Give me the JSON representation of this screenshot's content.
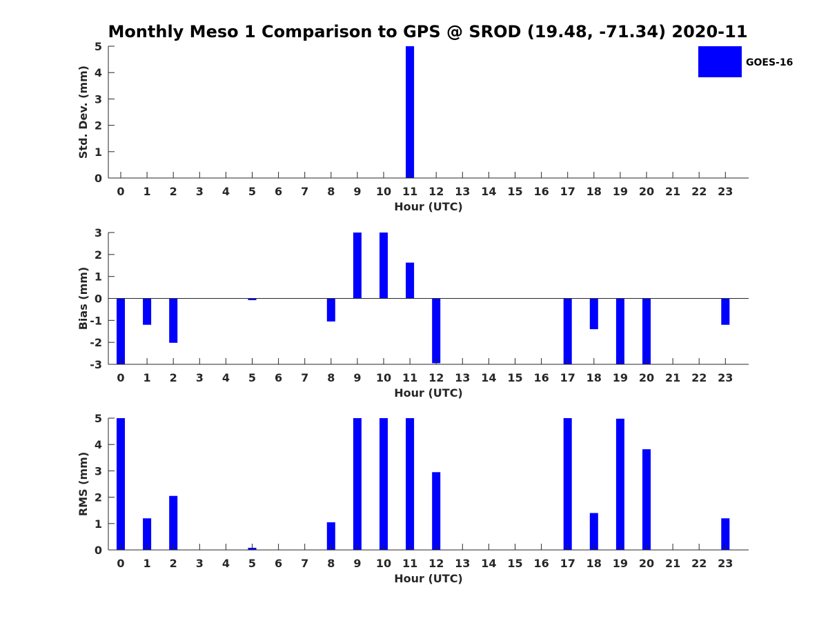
{
  "title": "Monthly Meso 1 Comparison to GPS @ SROD (19.48, -71.34) 2020-11",
  "legend": {
    "label": "GOES-16",
    "color": "#0000ff"
  },
  "chart_data": [
    {
      "type": "bar",
      "ylabel": "Std. Dev. (mm)",
      "xlabel": "Hour (UTC)",
      "ylim": [
        0,
        5
      ],
      "yticks": [
        "0",
        "1",
        "2",
        "3",
        "4",
        "5"
      ],
      "categories": [
        "0",
        "1",
        "2",
        "3",
        "4",
        "5",
        "6",
        "7",
        "8",
        "9",
        "10",
        "11",
        "12",
        "13",
        "14",
        "15",
        "16",
        "17",
        "18",
        "19",
        "20",
        "21",
        "22",
        "23"
      ],
      "series": [
        {
          "name": "GOES-16",
          "values": [
            0,
            0,
            0,
            0,
            0,
            0,
            0,
            0,
            0,
            0,
            0,
            5,
            0,
            0,
            0,
            0,
            0,
            0,
            0,
            0,
            0,
            0,
            0,
            0
          ]
        }
      ]
    },
    {
      "type": "bar",
      "ylabel": "Bias (mm)",
      "xlabel": "Hour (UTC)",
      "ylim": [
        -3,
        3
      ],
      "yticks": [
        "-3",
        "-2",
        "-1",
        "0",
        "1",
        "2",
        "3"
      ],
      "categories": [
        "0",
        "1",
        "2",
        "3",
        "4",
        "5",
        "6",
        "7",
        "8",
        "9",
        "10",
        "11",
        "12",
        "13",
        "14",
        "15",
        "16",
        "17",
        "18",
        "19",
        "20",
        "21",
        "22",
        "23"
      ],
      "series": [
        {
          "name": "GOES-16",
          "values": [
            -3,
            -1.2,
            -2.02,
            0,
            0,
            -0.08,
            0,
            0,
            -1.05,
            3,
            3,
            1.63,
            -2.95,
            0,
            0,
            0,
            0,
            -3,
            -1.4,
            -3,
            -3,
            0,
            0,
            -1.2
          ]
        }
      ]
    },
    {
      "type": "bar",
      "ylabel": "RMS (mm)",
      "xlabel": "Hour (UTC)",
      "ylim": [
        0,
        5
      ],
      "yticks": [
        "0",
        "1",
        "2",
        "3",
        "4",
        "5"
      ],
      "categories": [
        "0",
        "1",
        "2",
        "3",
        "4",
        "5",
        "6",
        "7",
        "8",
        "9",
        "10",
        "11",
        "12",
        "13",
        "14",
        "15",
        "16",
        "17",
        "18",
        "19",
        "20",
        "21",
        "22",
        "23"
      ],
      "series": [
        {
          "name": "GOES-16",
          "values": [
            5,
            1.2,
            2.05,
            0,
            0,
            0.08,
            0,
            0,
            1.05,
            5,
            5,
            5,
            2.95,
            0,
            0,
            0,
            0,
            5,
            1.4,
            4.98,
            3.82,
            0,
            0,
            1.2
          ]
        }
      ]
    }
  ]
}
